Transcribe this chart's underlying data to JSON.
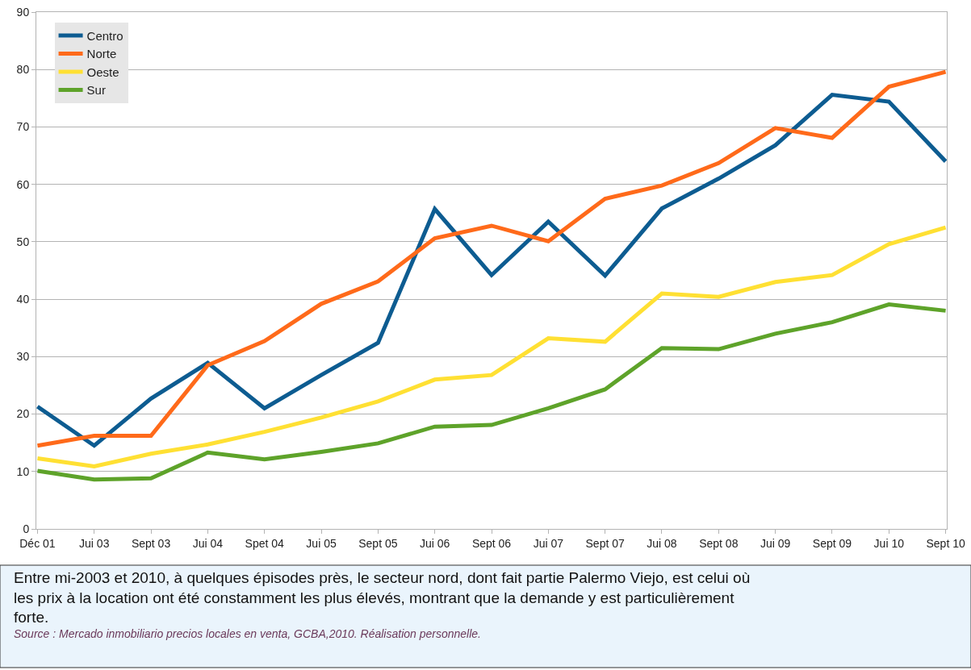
{
  "chart_data": {
    "type": "line",
    "categories": [
      "Déc 01",
      "Jui 03",
      "Sept 03",
      "Jui 04",
      "Spet 04",
      "Jui 05",
      "Sept 05",
      "Jui 06",
      "Sept 06",
      "Jui 07",
      "Sept 07",
      "Jui 08",
      "Sept 08",
      "Jui 09",
      "Sept 09",
      "Jui 10",
      "Sept 10"
    ],
    "series": [
      {
        "name": "Centro",
        "color": "#0d5c91",
        "values": [
          21.3,
          14.5,
          22.7,
          28.9,
          21.0,
          26.8,
          32.4,
          55.7,
          44.2,
          53.5,
          44.1,
          55.8,
          61.0,
          66.8,
          75.6,
          74.4,
          64.0
        ]
      },
      {
        "name": "Norte",
        "color": "#ff6a1a",
        "values": [
          14.5,
          16.2,
          16.2,
          28.5,
          32.7,
          39.2,
          43.1,
          50.6,
          52.8,
          50.1,
          57.5,
          59.8,
          63.7,
          69.8,
          68.1,
          77.0,
          79.6
        ]
      },
      {
        "name": "Oeste",
        "color": "#ffe033",
        "values": [
          12.3,
          10.9,
          13.1,
          14.7,
          16.9,
          19.4,
          22.2,
          26.0,
          26.8,
          33.2,
          32.6,
          41.0,
          40.4,
          43.0,
          44.2,
          49.6,
          52.5
        ]
      },
      {
        "name": "Sur",
        "color": "#5ea32a",
        "values": [
          10.1,
          8.6,
          8.8,
          13.3,
          12.1,
          13.4,
          14.9,
          17.8,
          18.1,
          21.0,
          24.3,
          31.5,
          31.3,
          34.0,
          36.0,
          39.1,
          38.0
        ]
      }
    ],
    "ylim": [
      0,
      90
    ],
    "yticks": [
      0,
      10,
      20,
      30,
      40,
      50,
      60,
      70,
      80,
      90
    ],
    "grid": "y",
    "legend": "top left",
    "marker": "none",
    "line_style": "solid",
    "annotations": [
      "Entre mi-2003 et 2010, à quelques épisodes près, le secteur nord, dont fait partie Palermo Viejo, est celui où les prix à la location ont été constamment les plus élevés, montrant que la demande y est particulièrement forte.",
      "Source : Mercado inmobiliario precios locales en venta, GCBA,2010. Réalisation personnelle."
    ]
  }
}
